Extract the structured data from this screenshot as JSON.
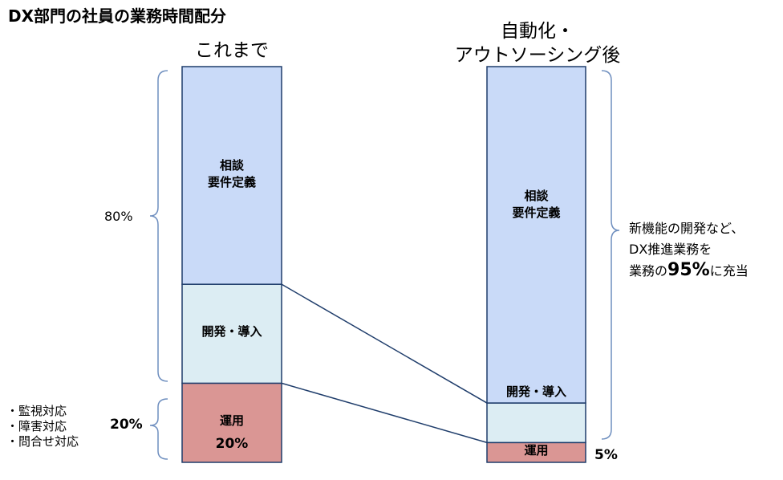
{
  "title": "DX部門の社員の業務時間配分",
  "colors": {
    "consult": "#c9daf8",
    "dev": "#dcedf3",
    "ops": "#da9694",
    "outline": "#1f3d6b",
    "brace": "#6f8fbf"
  },
  "chart_data": {
    "type": "bar",
    "stacked": true,
    "categories": [
      "これまで",
      "自動化・アウトソーシング後"
    ],
    "series": [
      {
        "name": "運用",
        "values": [
          20,
          5
        ]
      },
      {
        "name": "開発・導入",
        "values": [
          25,
          10
        ]
      },
      {
        "name": "相談要件定義",
        "values": [
          55,
          85
        ]
      }
    ],
    "ylim": [
      0,
      100
    ]
  },
  "labels": {
    "col_before": "これまで",
    "col_after_line1": "自動化・",
    "col_after_line2": "アウトソーシング後",
    "consult_line1": "相談",
    "consult_line2": "要件定義",
    "dev": "開発・導入",
    "ops": "運用",
    "ops_pct_before": "20%",
    "ops_pct_after": "5%",
    "pct_80": "80%",
    "pct_20": "20%",
    "ops_tasks": [
      "・監視対応",
      "・障害対応",
      "・問合せ対応"
    ],
    "right_note_line1": "新機能の開発など、",
    "right_note_line2": "DX推進業務を",
    "right_note_prefix": "業務の",
    "right_note_value": "95%",
    "right_note_suffix": "に充当"
  }
}
